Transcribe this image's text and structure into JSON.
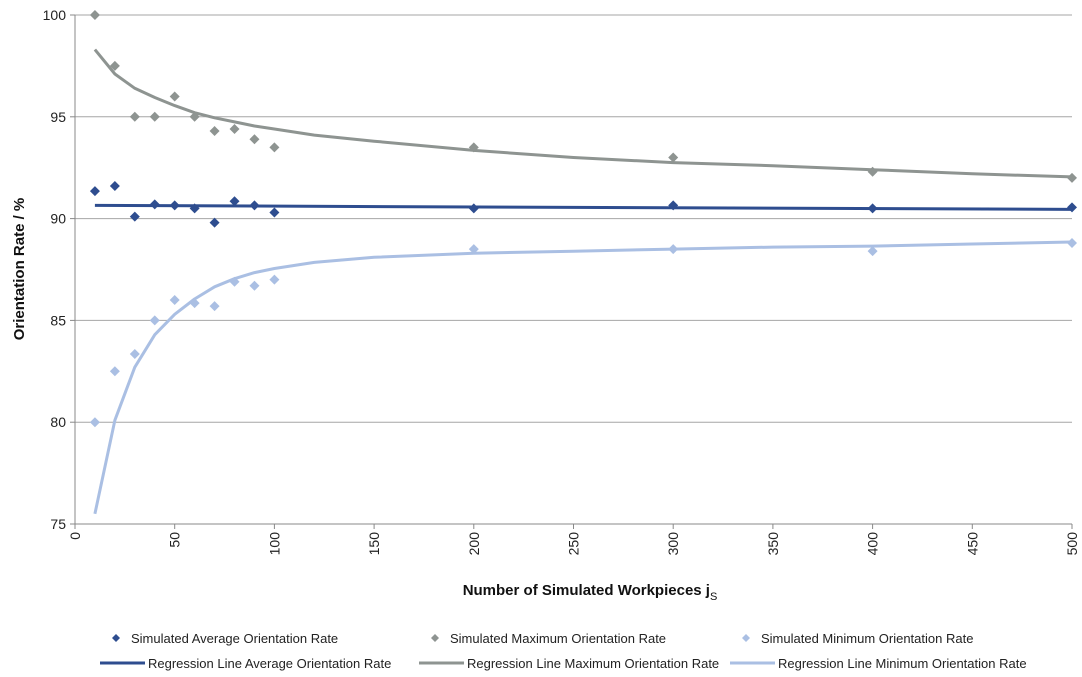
{
  "chart_data": {
    "type": "scatter",
    "title": "",
    "xlabel": "Number of Simulated Workpieces j",
    "xlabel_subscript": "S",
    "ylabel": "Orientation Rate / %",
    "xlim": [
      0,
      500
    ],
    "ylim": [
      75,
      100
    ],
    "xticks": [
      0,
      50,
      100,
      150,
      200,
      250,
      300,
      350,
      400,
      450,
      500
    ],
    "yticks": [
      75,
      80,
      85,
      90,
      95,
      100
    ],
    "grid": "horizontal",
    "legend_position": "bottom",
    "series": [
      {
        "name": "Simulated Average Orientation Rate",
        "kind": "markers",
        "color": "#2e4d8f",
        "x": [
          10,
          20,
          30,
          40,
          50,
          60,
          70,
          80,
          90,
          100,
          200,
          300,
          400,
          500
        ],
        "y": [
          91.35,
          91.6,
          90.1,
          90.7,
          90.65,
          90.5,
          89.8,
          90.85,
          90.65,
          90.3,
          90.5,
          90.65,
          90.5,
          90.55
        ]
      },
      {
        "name": "Simulated Maximum Orientation Rate",
        "kind": "markers",
        "color": "#8e9491",
        "x": [
          10,
          20,
          30,
          40,
          50,
          60,
          70,
          80,
          90,
          100,
          200,
          300,
          400,
          500
        ],
        "y": [
          100,
          97.5,
          95,
          95,
          96,
          95,
          94.3,
          94.4,
          93.9,
          93.5,
          93.5,
          93,
          92.3,
          92
        ]
      },
      {
        "name": "Simulated Minimum Orientation Rate",
        "kind": "markers",
        "color": "#aabfe3",
        "x": [
          10,
          20,
          30,
          40,
          50,
          60,
          70,
          80,
          90,
          100,
          200,
          300,
          400,
          500
        ],
        "y": [
          80,
          82.5,
          83.35,
          85,
          86,
          85.85,
          85.7,
          86.9,
          86.7,
          87,
          88.5,
          88.5,
          88.4,
          88.8
        ]
      },
      {
        "name": "Regression Line Average Orientation Rate",
        "kind": "line",
        "color": "#2e4d8f",
        "x": [
          10,
          500
        ],
        "y": [
          90.65,
          90.45
        ]
      },
      {
        "name": "Regression Line Maximum Orientation Rate",
        "kind": "line",
        "color": "#8e9491",
        "x": [
          10,
          20,
          30,
          40,
          50,
          60,
          70,
          80,
          90,
          100,
          120,
          150,
          200,
          250,
          300,
          350,
          400,
          450,
          500
        ],
        "y": [
          98.3,
          97.1,
          96.4,
          95.95,
          95.55,
          95.2,
          94.95,
          94.75,
          94.55,
          94.4,
          94.1,
          93.8,
          93.35,
          93.0,
          92.75,
          92.6,
          92.4,
          92.2,
          92.05
        ]
      },
      {
        "name": "Regression Line Minimum Orientation Rate",
        "kind": "line",
        "color": "#aabfe3",
        "x": [
          10,
          20,
          30,
          40,
          50,
          60,
          70,
          80,
          90,
          100,
          120,
          150,
          200,
          250,
          300,
          350,
          400,
          450,
          500
        ],
        "y": [
          75.5,
          80.1,
          82.7,
          84.3,
          85.3,
          86.05,
          86.65,
          87.05,
          87.35,
          87.55,
          87.85,
          88.1,
          88.3,
          88.4,
          88.5,
          88.6,
          88.65,
          88.75,
          88.85
        ]
      }
    ]
  }
}
